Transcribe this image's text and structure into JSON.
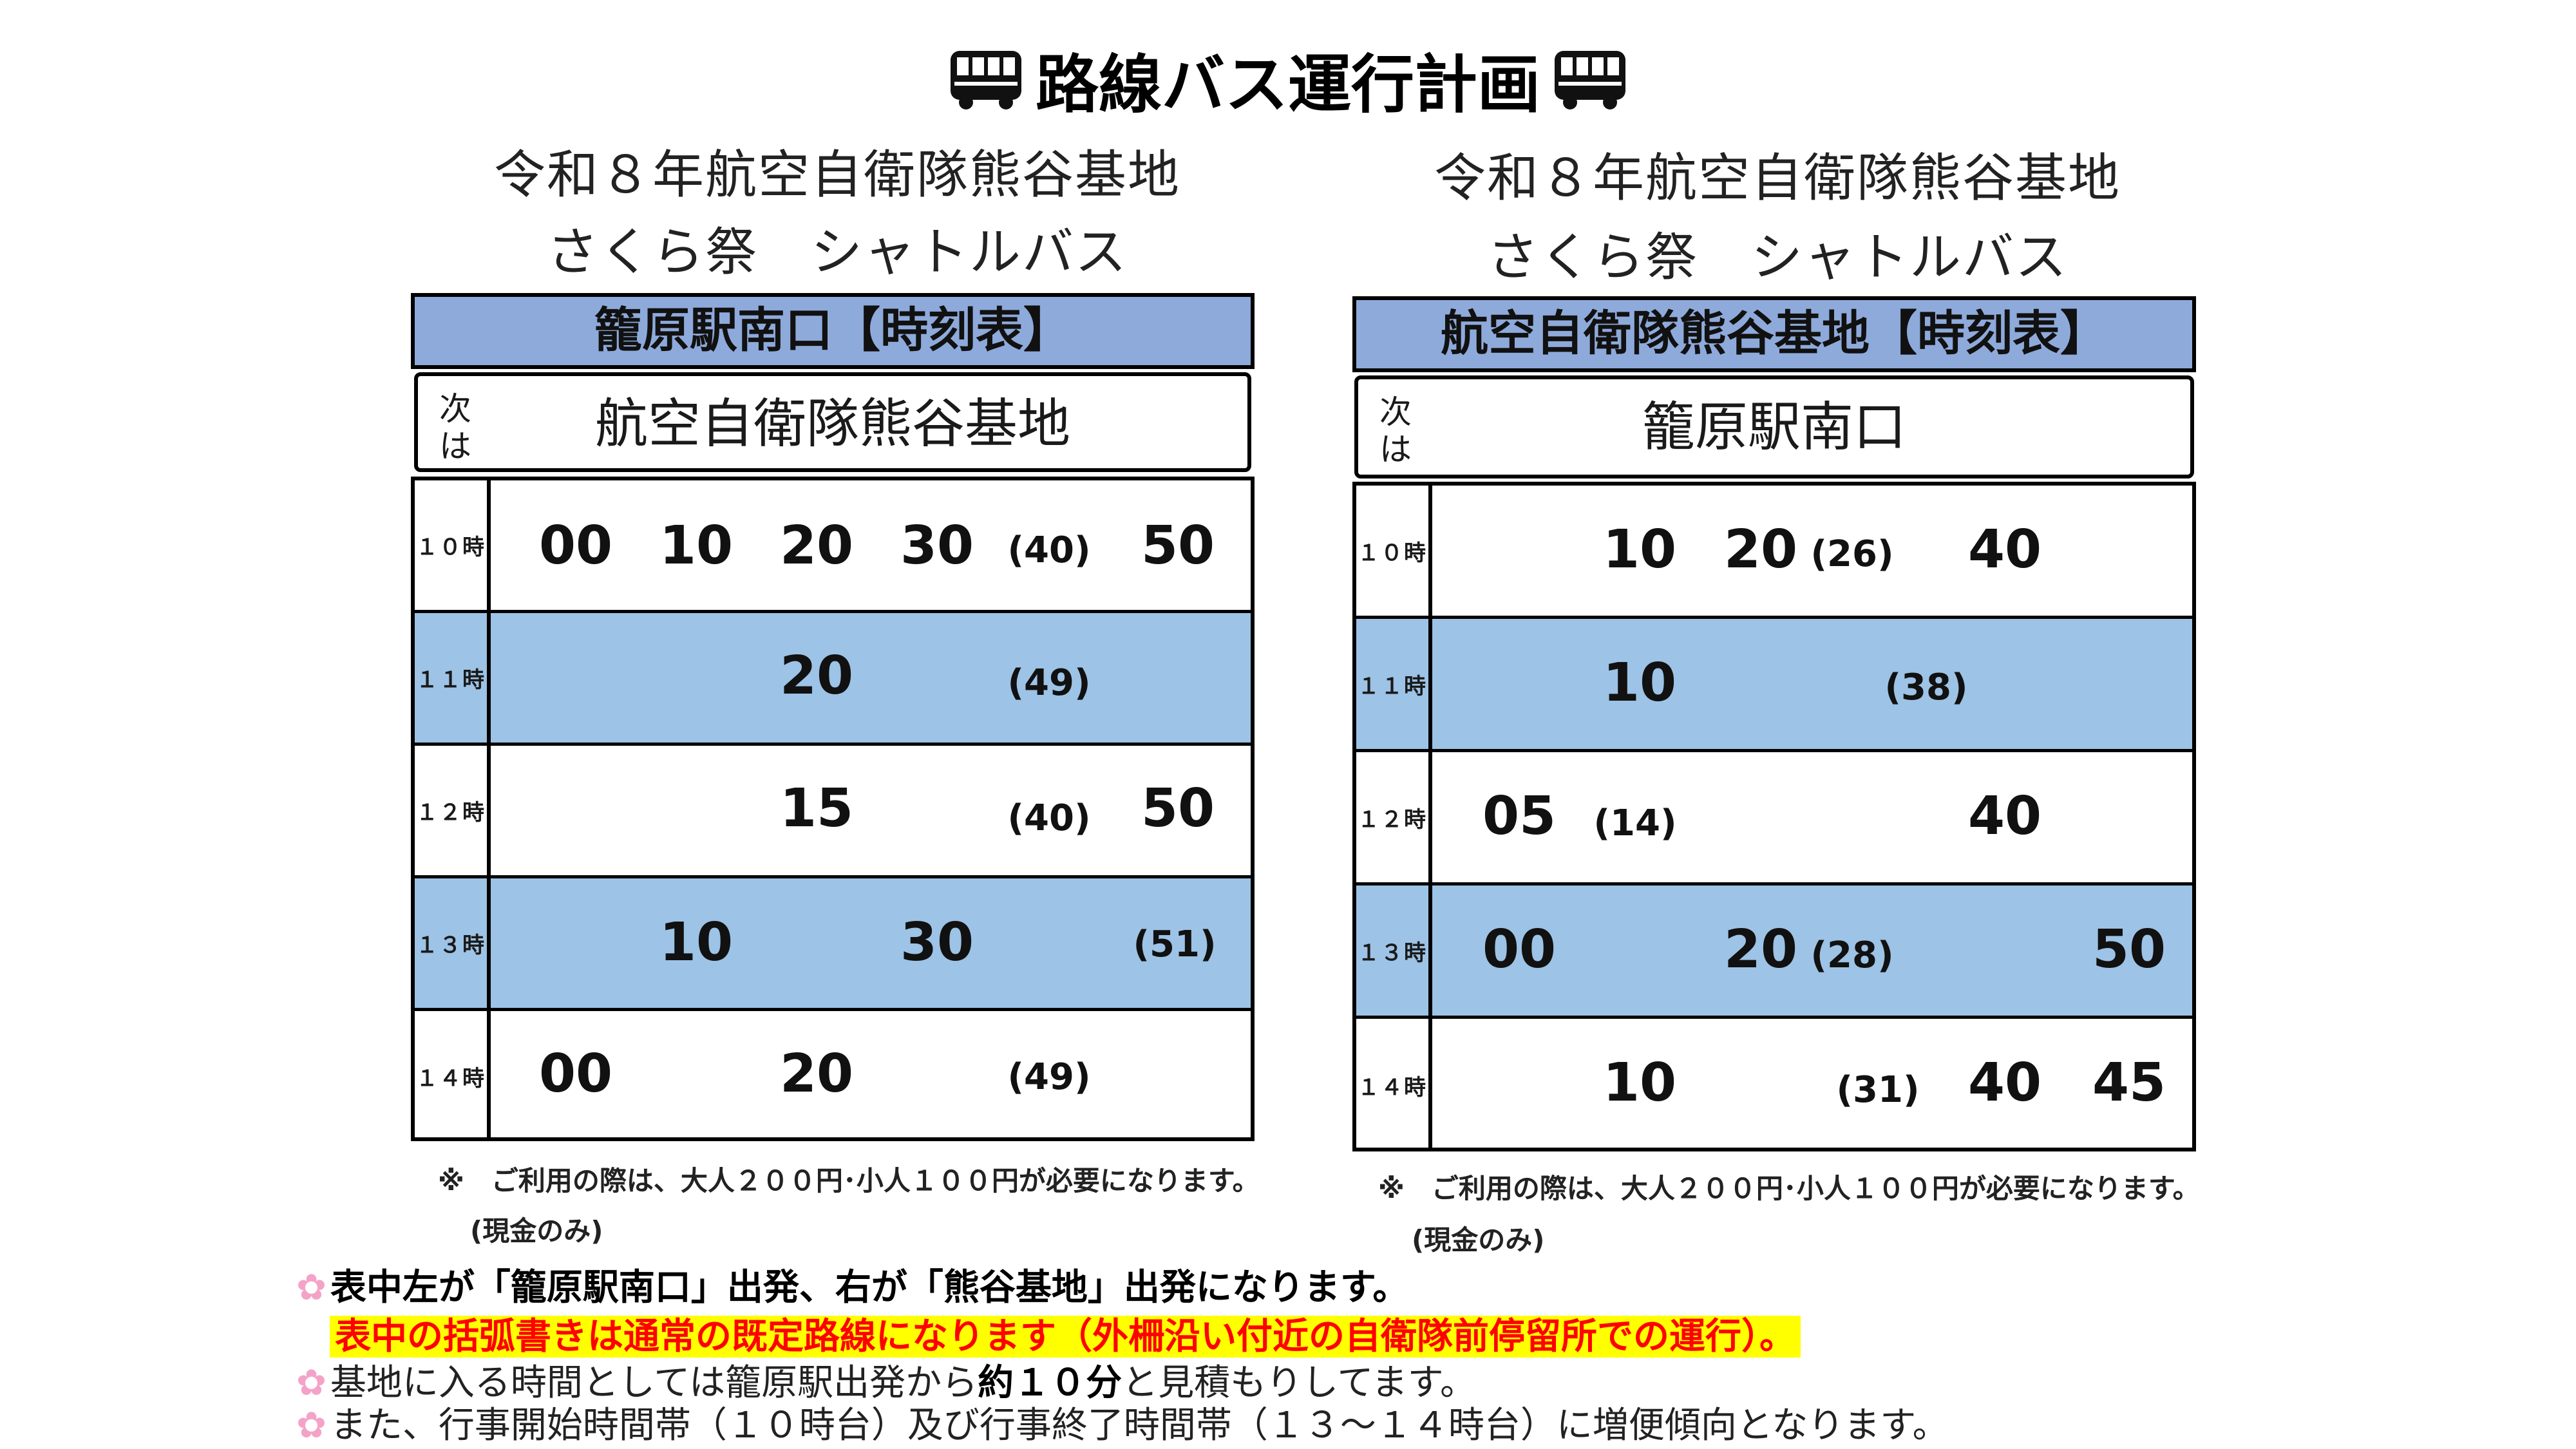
{
  "page_title": "路線バス運行計画",
  "tables": [
    {
      "header_line1": "令和８年航空自衛隊熊谷基地",
      "header_line2": "さくら祭　シャトルバス",
      "timetable_label": "籠原駅南口【時刻表】",
      "next_label": "次は",
      "next_stop": "航空自衛隊熊谷基地",
      "rows": [
        {
          "hour": "１０時",
          "minutes": [
            "00",
            "10",
            "20",
            "30",
            "(40)",
            "50"
          ]
        },
        {
          "hour": "１１時",
          "minutes": [
            "20",
            "(49)"
          ]
        },
        {
          "hour": "１２時",
          "minutes": [
            "15",
            "(40)",
            "50"
          ]
        },
        {
          "hour": "１３時",
          "minutes": [
            "10",
            "30",
            "(51)"
          ]
        },
        {
          "hour": "１４時",
          "minutes": [
            "00",
            "20",
            "(49)"
          ]
        }
      ],
      "fare_note": "※　ご利用の際は、大人２００円･小人１００円が必要になります。",
      "cash_note": "(現金のみ)"
    },
    {
      "header_line1": "令和８年航空自衛隊熊谷基地",
      "header_line2": "さくら祭　シャトルバス",
      "timetable_label": "航空自衛隊熊谷基地【時刻表】",
      "next_label": "次は",
      "next_stop": "籠原駅南口",
      "rows": [
        {
          "hour": "１０時",
          "minutes": [
            "10",
            "20",
            "(26)",
            "40"
          ]
        },
        {
          "hour": "１１時",
          "minutes": [
            "10",
            "(38)"
          ]
        },
        {
          "hour": "１２時",
          "minutes": [
            "05",
            "(14)",
            "40"
          ]
        },
        {
          "hour": "１３時",
          "minutes": [
            "00",
            "20",
            "(28)",
            "50"
          ]
        },
        {
          "hour": "１４時",
          "minutes": [
            "10",
            "(31)",
            "40",
            "45"
          ]
        }
      ],
      "fare_note": "※　ご利用の際は、大人２００円･小人１００円が必要になります。",
      "cash_note": "(現金のみ)"
    }
  ],
  "bullets": {
    "b1": "表中左が「籠原駅南口」出発、右が「熊谷基地」出発になります。",
    "b1_highlight": "表中の括弧書きは通常の既定路線になります（外柵沿い付近の自衛隊前停留所での運行）。",
    "b2_pre": "基地に入る時間としては籠原駅出発から",
    "b2_bold": "約１０分",
    "b2_post": "と見積もりしてます。",
    "b3": "また、行事開始時間帯（１０時台）及び行事終了時間帯（１３～１４時台）に増便傾向となります。"
  },
  "colors": {
    "header_bar": "#8eaadb",
    "blue_row": "#9dc3e6",
    "highlight": "#ffff00",
    "highlight_text": "#ff0000",
    "flower": "#f4a3c8"
  },
  "icons": {
    "bus": "bus-icon",
    "bullet": "sakura-icon"
  }
}
